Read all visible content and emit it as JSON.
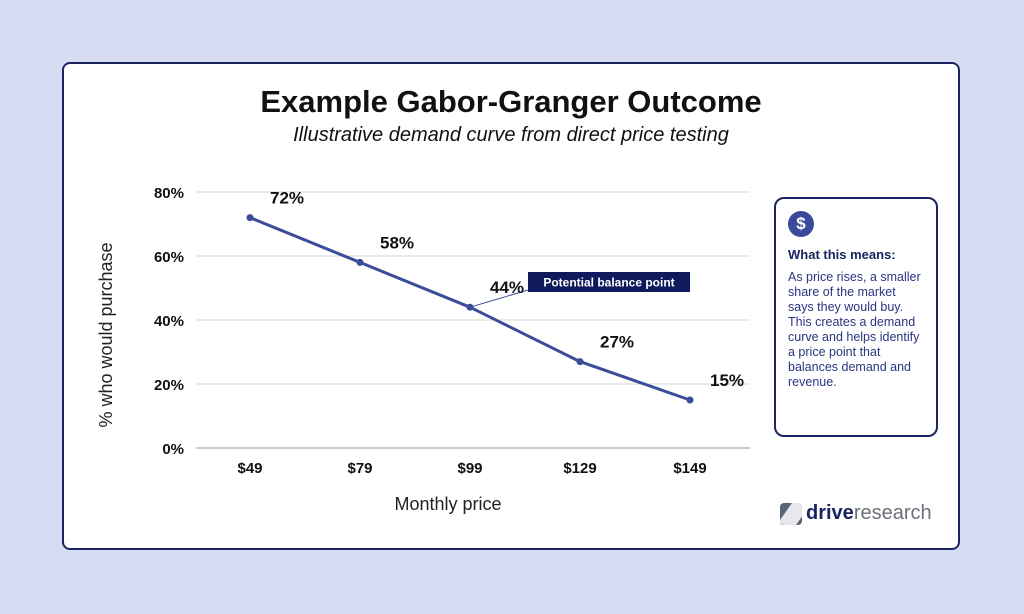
{
  "title": "Example Gabor-Granger Outcome",
  "subtitle": "Illustrative demand curve from direct price testing",
  "chart_data": {
    "type": "line",
    "categories": [
      "$49",
      "$79",
      "$99",
      "$129",
      "$149"
    ],
    "values": [
      72,
      58,
      44,
      27,
      15
    ],
    "data_labels": [
      "72%",
      "58%",
      "44%",
      "27%",
      "15%"
    ],
    "xlabel": "Monthly price",
    "ylabel": "% who would purchase",
    "ylim": [
      0,
      80
    ],
    "yticks": [
      0,
      20,
      40,
      60,
      80
    ],
    "ytick_labels": [
      "0%",
      "20%",
      "40%",
      "60%",
      "80%"
    ],
    "grid": true,
    "line_color": "#3b4c9b",
    "annotation": {
      "text": "Potential balance point",
      "category": "$99",
      "value": 44,
      "bg_color": "#0f1a5c"
    }
  },
  "info_box": {
    "icon": "dollar-icon",
    "icon_glyph": "$",
    "heading": "What this means:",
    "text": "As price rises, a smaller share of the market says they would buy. This creates a demand curve and helps identify a price point that balances demand and revenue."
  },
  "logo": {
    "drive": "drive",
    "research": "research"
  }
}
